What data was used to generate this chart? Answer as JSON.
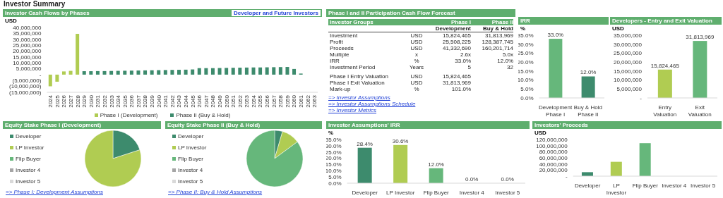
{
  "chart_data": [
    {
      "type": "bar",
      "title": "Investor Cash Flows by Phases",
      "ylabel": "USD",
      "stacked": true,
      "legend": "bottom",
      "annotations": [
        "Investor Summary",
        "Developer and Future Investors"
      ],
      "categories": [
        "2024",
        "2025",
        "2026",
        "2027",
        "2028",
        "2029",
        "2030",
        "2031",
        "2032",
        "2033",
        "2034",
        "2035",
        "2036",
        "2037",
        "2038",
        "2039",
        "2040",
        "2041",
        "2042",
        "2043",
        "2044",
        "2045",
        "2046",
        "2047",
        "2048",
        "2049",
        "2050",
        "2051",
        "2052",
        "2053",
        "2054",
        "2055",
        "2056",
        "2057",
        "2058",
        "2059",
        "2060",
        "2061",
        "2062",
        "2063"
      ],
      "series": [
        {
          "name": "Phase I (Development)",
          "color": "#b0cc52",
          "values": [
            -9900000,
            -6000000,
            2700000,
            3200000,
            34600000,
            null,
            null,
            null,
            null,
            null,
            null,
            null,
            null,
            null,
            null,
            null,
            null,
            null,
            null,
            null,
            null,
            null,
            null,
            null,
            null,
            null,
            null,
            null,
            null,
            null,
            null,
            null,
            null,
            null,
            null,
            null,
            null,
            null,
            null,
            null
          ]
        },
        {
          "name": "Phase II (Buy & Hold)",
          "color": "#3d8b6d",
          "values": [
            null,
            null,
            null,
            null,
            null,
            2900000,
            2900000,
            3000000,
            3000000,
            3100000,
            3200000,
            3300000,
            3400000,
            3500000,
            3600000,
            3700000,
            3800000,
            3900000,
            4000000,
            4100000,
            4200000,
            4400000,
            5500000,
            5500000,
            5500000,
            5600000,
            5700000,
            5800000,
            5900000,
            6000000,
            6100000,
            6100000,
            6200000,
            6300000,
            6400000,
            6500000,
            4800000,
            900000,
            null,
            null
          ]
        }
      ],
      "ylim": [
        -15000000,
        40000000
      ],
      "yticks": [
        {
          "value": -15000000,
          "label": "(15,000,000)"
        },
        {
          "value": -10000000,
          "label": "(10,000,000)"
        },
        {
          "value": -5000000,
          "label": "(5,000,000)"
        },
        {
          "value": 0,
          "label": "-"
        },
        {
          "value": 5000000,
          "label": "5,000,000"
        },
        {
          "value": 10000000,
          "label": "10,000,000"
        },
        {
          "value": 15000000,
          "label": "15,000,000"
        },
        {
          "value": 20000000,
          "label": "20,000,000"
        },
        {
          "value": 25000000,
          "label": "25,000,000"
        },
        {
          "value": 30000000,
          "label": "30,000,000"
        },
        {
          "value": 35000000,
          "label": "35,000,000"
        },
        {
          "value": 40000000,
          "label": "40,000,000"
        }
      ]
    },
    {
      "type": "other",
      "title": "Phase I and II Participation Cash Flow Forecast",
      "cell_labels": [
        [
          "Investor Groups",
          null,
          "Phase I",
          "Phase II"
        ],
        [
          null,
          null,
          "Development",
          "Buy & Hold"
        ],
        [
          "Investment",
          "USD",
          "15,824,465",
          "31,813,969"
        ],
        [
          "Profit",
          "USD",
          "25,508,225",
          "128,387,745"
        ],
        [
          "Proceeds",
          "USD",
          "41,332,690",
          "160,201,714"
        ],
        [
          "Multiple",
          "x",
          "2.6x",
          "5.0x"
        ],
        [
          "IRR",
          "%",
          "33.0%",
          "12.0%"
        ],
        [
          "Investment Period",
          "Years",
          "5",
          "32"
        ],
        [
          null,
          null,
          null,
          null
        ],
        [
          "Phase I Entry Valuation",
          "USD",
          "15,824,465",
          null
        ],
        [
          "Phase I Exit Valuation",
          "USD",
          "31,813,969",
          null
        ],
        [
          "Mark-up",
          "%",
          "101.0%",
          null
        ]
      ],
      "annotations": [
        "=> Investor Assumptions",
        "=> Investor Assumptions Schedule",
        "=> Investor Metrics"
      ]
    },
    {
      "type": "bar",
      "title": "IRR",
      "ylabel": "%",
      "categories": [
        "Development\nPhase I",
        "Buy & Hold\nPhase II"
      ],
      "values": [
        33.0,
        12.0
      ],
      "colors": [
        "#66b77b",
        "#3d8b6d"
      ],
      "value_labels": [
        "33.0%",
        "12.0%"
      ],
      "ylim": [
        0,
        35
      ],
      "yticks": [
        {
          "value": 0,
          "label": "0.0%"
        },
        {
          "value": 5,
          "label": "5.0%"
        },
        {
          "value": 10,
          "label": "10.0%"
        },
        {
          "value": 15,
          "label": "15.0%"
        },
        {
          "value": 20,
          "label": "20.0%"
        },
        {
          "value": 25,
          "label": "25.0%"
        },
        {
          "value": 30,
          "label": "30.0%"
        },
        {
          "value": 35,
          "label": "35.0%"
        }
      ]
    },
    {
      "type": "bar",
      "title": "Developers - Entry and Exit Valuation",
      "ylabel": "USD",
      "categories": [
        "Entry Valuation",
        "Exit Valuation"
      ],
      "values": [
        15824465,
        31813969
      ],
      "colors": [
        "#b0cc52",
        "#66b77b"
      ],
      "value_labels": [
        "15,824,465",
        "31,813,969"
      ],
      "ylim": [
        0,
        35000000
      ],
      "yticks": [
        {
          "value": 0,
          "label": "-"
        },
        {
          "value": 5000000,
          "label": "5,000,000"
        },
        {
          "value": 10000000,
          "label": "10,000,000"
        },
        {
          "value": 15000000,
          "label": "15,000,000"
        },
        {
          "value": 20000000,
          "label": "20,000,000"
        },
        {
          "value": 25000000,
          "label": "25,000,000"
        },
        {
          "value": 30000000,
          "label": "30,000,000"
        },
        {
          "value": 35000000,
          "label": "35,000,000"
        }
      ]
    },
    {
      "type": "pie",
      "title": "Equity Stake Phase I (Development)",
      "legend": "left",
      "categories": [
        "Developer",
        "LP Investor",
        "Flip Buyer",
        "Investor 4",
        "Investor 5"
      ],
      "values": [
        20,
        80,
        0,
        0,
        0
      ],
      "colors": [
        "#3d8b6d",
        "#b0cc52",
        "#66b77b",
        "#a5a5a5",
        "#d9d9d9"
      ],
      "annotations": [
        "=> Phase I: Development Assumptions"
      ]
    },
    {
      "type": "pie",
      "title": "Equity Stake Phase II (Buy & Hold)",
      "legend": "left",
      "categories": [
        "Developer",
        "LP Investor",
        "Flip Buyer",
        "Investor 4",
        "Investor 5"
      ],
      "values": [
        4.5,
        10.4,
        85.1,
        0,
        0
      ],
      "colors": [
        "#3d8b6d",
        "#b0cc52",
        "#66b77b",
        "#a5a5a5",
        "#d9d9d9"
      ],
      "annotations": [
        "=> Phase II: Buy & Hold Assumptions"
      ]
    },
    {
      "type": "bar",
      "title": "Investor Assumptions' IRR",
      "ylabel": "%",
      "categories": [
        "Developer",
        "LP Investor",
        "Flip Buyer",
        "Investor 4",
        "Investor 5"
      ],
      "values": [
        28.4,
        30.6,
        12.0,
        0,
        0
      ],
      "colors": [
        "#3d8b6d",
        "#b0cc52",
        "#66b77b",
        "#a5a5a5",
        "#d9d9d9"
      ],
      "value_labels": [
        "28.4%",
        "30.6%",
        "12.0%",
        "0.0%",
        "0.0%"
      ],
      "ylim": [
        0,
        35
      ],
      "yticks": [
        {
          "value": 0,
          "label": "0.0%"
        },
        {
          "value": 5,
          "label": "5.0%"
        },
        {
          "value": 10,
          "label": "10.0%"
        },
        {
          "value": 15,
          "label": "15.0%"
        },
        {
          "value": 20,
          "label": "20.0%"
        },
        {
          "value": 25,
          "label": "25.0%"
        },
        {
          "value": 30,
          "label": "30.0%"
        },
        {
          "value": 35,
          "label": "35.0%"
        }
      ]
    },
    {
      "type": "bar",
      "title": "Investors' Proceeds",
      "ylabel": "USD",
      "categories": [
        "Developer",
        "LP Investor",
        "Flip Buyer",
        "Investor 4",
        "Investor 5"
      ],
      "values": [
        13000000,
        47000000,
        108000000,
        0,
        0
      ],
      "colors": [
        "#3d8b6d",
        "#b0cc52",
        "#66b77b",
        "#a5a5a5",
        "#d9d9d9"
      ],
      "ylim": [
        0,
        120000000
      ],
      "yticks": [
        {
          "value": 0,
          "label": "-"
        },
        {
          "value": 20000000,
          "label": "20,000,000"
        },
        {
          "value": 40000000,
          "label": "40,000,000"
        },
        {
          "value": 60000000,
          "label": "60,000,000"
        },
        {
          "value": 80000000,
          "label": "80,000,000"
        },
        {
          "value": 100000000,
          "label": "100,000,000"
        },
        {
          "value": 120000000,
          "label": "120,000,000"
        }
      ]
    }
  ]
}
